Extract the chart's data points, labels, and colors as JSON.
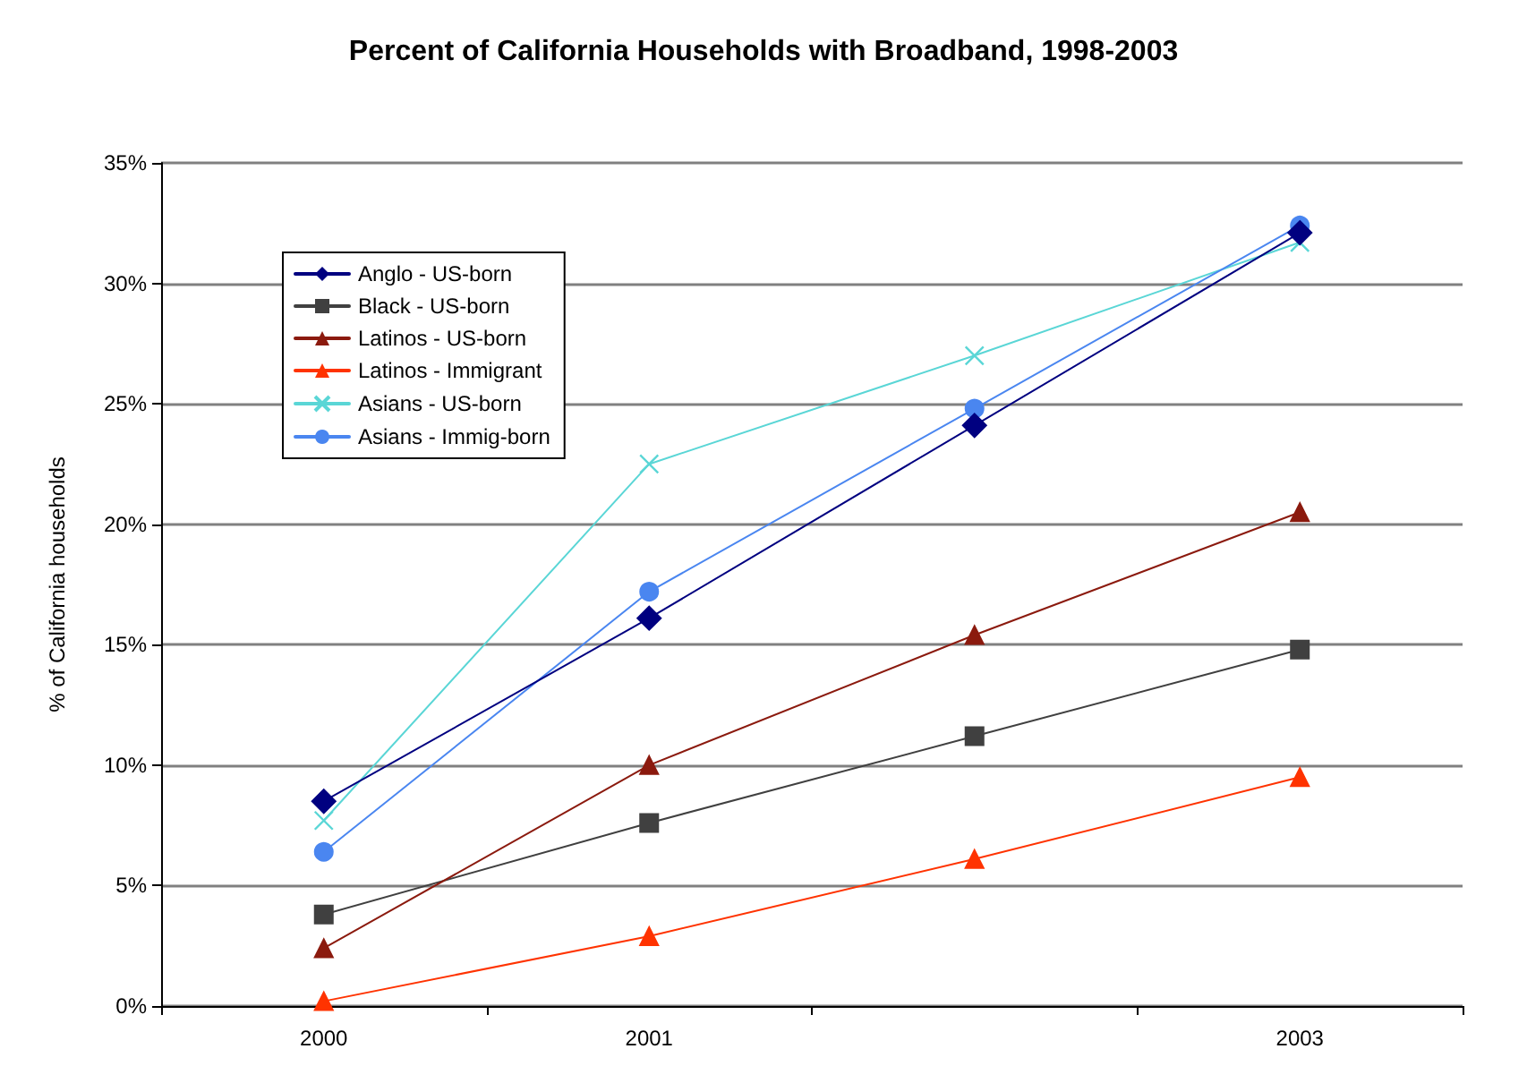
{
  "chart_data": {
    "type": "line",
    "title": "Percent of California Households with Broadband, 1998-2003",
    "ylabel": "% of California households",
    "categories": [
      "2000",
      "2001",
      null,
      "2003"
    ],
    "ylim": [
      0,
      35
    ],
    "yticks": [
      {
        "value": 0,
        "label": "0%"
      },
      {
        "value": 5,
        "label": "5%"
      },
      {
        "value": 10,
        "label": "10%"
      },
      {
        "value": 15,
        "label": "15%"
      },
      {
        "value": 20,
        "label": "20%"
      },
      {
        "value": 25,
        "label": "25%"
      },
      {
        "value": 30,
        "label": "30%"
      },
      {
        "value": 35,
        "label": "35%"
      }
    ],
    "grid": "y",
    "legend": "top left",
    "line_style": "solid",
    "series": [
      {
        "name": "Anglo - US-born",
        "color": "#000080",
        "marker": "diamond",
        "values": [
          8.5,
          16.1,
          24.1,
          32.1
        ]
      },
      {
        "name": "Black - US-born",
        "color": "#404040",
        "marker": "square",
        "values": [
          3.8,
          7.6,
          11.2,
          14.8
        ]
      },
      {
        "name": "Latinos - US-born",
        "color": "#8b1a0e",
        "marker": "triangle",
        "values": [
          2.4,
          10.0,
          15.4,
          20.5
        ]
      },
      {
        "name": "Latinos - Immigrant",
        "color": "#ff3300",
        "marker": "triangle",
        "values": [
          0.2,
          2.9,
          6.1,
          9.5
        ]
      },
      {
        "name": "Asians - US-born",
        "color": "#5ad6d6",
        "marker": "cross",
        "values": [
          7.7,
          22.5,
          27.0,
          31.7
        ]
      },
      {
        "name": "Asians - Immig-born",
        "color": "#4a86f0",
        "marker": "circle",
        "values": [
          6.4,
          17.2,
          24.8,
          32.4
        ]
      }
    ]
  }
}
